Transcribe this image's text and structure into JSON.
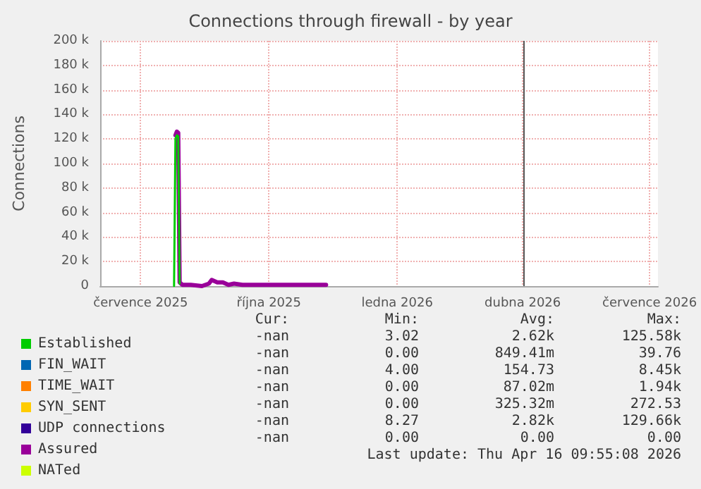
{
  "chart_data": {
    "type": "line",
    "title": "Connections through firewall - by year",
    "ylabel": "Connections",
    "x": [
      "2025-08-08",
      "2025-08-09",
      "2025-08-10",
      "2025-08-11",
      "2025-08-12",
      "2025-08-14",
      "2025-08-20",
      "2025-08-28",
      "2025-09-02",
      "2025-09-04",
      "2025-09-06",
      "2025-09-08",
      "2025-09-12",
      "2025-09-16",
      "2025-09-20",
      "2025-09-26",
      "2025-10-05",
      "2025-10-15",
      "2025-10-25",
      "2025-11-05",
      "2025-11-15",
      "2025-11-25"
    ],
    "series": [
      {
        "name": "Established",
        "color": "#00cc00",
        "values": [
          0,
          120000,
          123000,
          122000,
          2000,
          null,
          null,
          null,
          null,
          null,
          null,
          null,
          null,
          null,
          null,
          null,
          null,
          null,
          null,
          null,
          null,
          null
        ]
      },
      {
        "name": "FIN_WAIT",
        "color": "#0066b3",
        "values": [
          null,
          null,
          null,
          null,
          null,
          null,
          null,
          null,
          null,
          null,
          null,
          null,
          null,
          null,
          null,
          null,
          null,
          null,
          null,
          null,
          null,
          null
        ]
      },
      {
        "name": "TIME_WAIT",
        "color": "#ff8000",
        "values": [
          null,
          null,
          null,
          null,
          null,
          null,
          null,
          null,
          null,
          null,
          null,
          null,
          null,
          null,
          null,
          null,
          null,
          null,
          null,
          null,
          null,
          null
        ]
      },
      {
        "name": "SYN_SENT",
        "color": "#ffcc00",
        "values": [
          null,
          null,
          null,
          null,
          null,
          null,
          null,
          null,
          null,
          null,
          null,
          null,
          null,
          null,
          null,
          null,
          null,
          null,
          null,
          null,
          null,
          null
        ]
      },
      {
        "name": "UDP connections",
        "color": "#330099",
        "values": [
          null,
          null,
          null,
          null,
          null,
          null,
          null,
          null,
          null,
          null,
          null,
          null,
          null,
          null,
          null,
          null,
          null,
          null,
          null,
          null,
          null,
          null
        ]
      },
      {
        "name": "Assured",
        "color": "#990099",
        "values": [
          null,
          123000,
          126000,
          125000,
          3000,
          1000,
          1000,
          0,
          2000,
          5000,
          4000,
          3000,
          3000,
          1000,
          2000,
          1000,
          1000,
          1000,
          1000,
          1000,
          1000,
          1000
        ]
      },
      {
        "name": "NATed",
        "color": "#ccff00",
        "values": [
          null,
          null,
          null,
          null,
          null,
          null,
          null,
          null,
          null,
          null,
          null,
          null,
          null,
          null,
          null,
          null,
          null,
          null,
          null,
          null,
          null,
          null
        ]
      }
    ],
    "xlim": [
      "2025-06-16",
      "2026-07-21"
    ],
    "xticks": [
      {
        "value": "2025-07-15",
        "label": "července 2025"
      },
      {
        "value": "2025-10-15",
        "label": "října 2025"
      },
      {
        "value": "2026-01-15",
        "label": "ledna 2026"
      },
      {
        "value": "2026-04-15",
        "label": "dubna 2026"
      },
      {
        "value": "2026-07-15",
        "label": "července 2026"
      }
    ],
    "ylim": [
      0,
      200000
    ],
    "yticks": [
      0,
      {
        "value": 20000,
        "label": "20 k"
      },
      {
        "value": 40000,
        "label": "40 k"
      },
      {
        "value": 60000,
        "label": "60 k"
      },
      {
        "value": 80000,
        "label": "80 k"
      },
      {
        "value": 100000,
        "label": "100 k"
      },
      {
        "value": 120000,
        "label": "120 k"
      },
      {
        "value": 140000,
        "label": "140 k"
      },
      {
        "value": 160000,
        "label": "160 k"
      },
      {
        "value": 180000,
        "label": "180 k"
      },
      {
        "value": 200000,
        "label": "200 k"
      }
    ],
    "ref_lines": [
      {
        "axis": "x",
        "value": "2026-04-16",
        "color": "#555555"
      }
    ],
    "grid": true,
    "legend": "bottom left",
    "marker": "none",
    "line_style": "solid",
    "annotations": [
      "Cur:",
      "Min:",
      "Avg:",
      "Max:",
      "-nan",
      "3.02",
      "2.62k",
      "125.58k",
      "-nan",
      "0.00",
      "849.41m",
      "39.76",
      "-nan",
      "4.00",
      "154.73",
      "8.45k",
      "-nan",
      "0.00",
      "87.02m",
      "1.94k",
      "-nan",
      "0.00",
      "325.32m",
      "272.53",
      "-nan",
      "8.27",
      "2.82k",
      "129.66k",
      "-nan",
      "0.00",
      "0.00",
      "0.00",
      "Last update: Thu Apr 16 09:55:08 2026"
    ]
  }
}
